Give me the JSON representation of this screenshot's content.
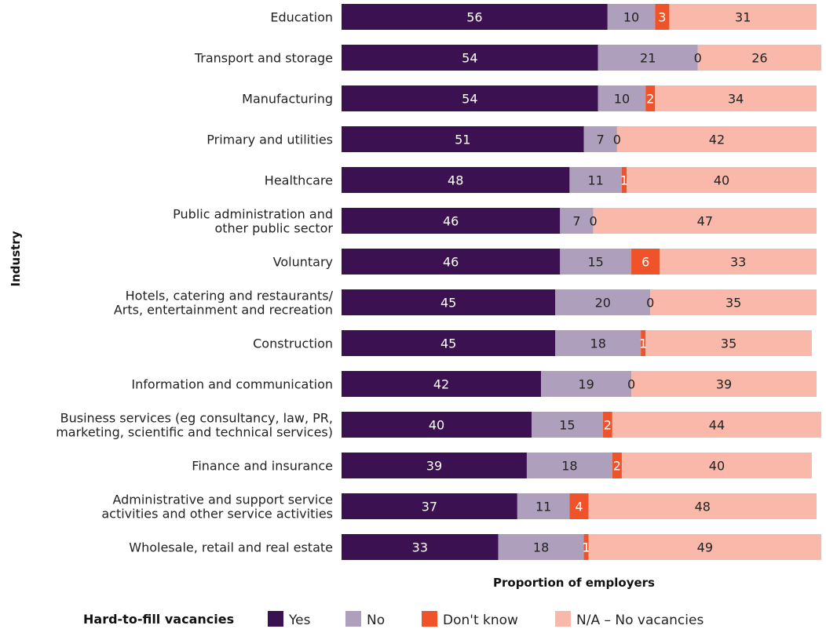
{
  "chart_data": {
    "type": "bar",
    "orientation": "horizontal",
    "stacked": true,
    "xlabel": "Proportion of employers",
    "ylabel": "Industry",
    "xlim": [
      0,
      100
    ],
    "grid": false,
    "legend_position": "bottom",
    "legend_title": "Hard-to-fill vacancies",
    "categories": [
      [
        "Education"
      ],
      [
        "Transport and storage"
      ],
      [
        "Manufacturing"
      ],
      [
        "Primary and utilities"
      ],
      [
        "Healthcare"
      ],
      [
        "Public administration and",
        "other public sector"
      ],
      [
        "Voluntary"
      ],
      [
        "Hotels, catering and restaurants/",
        "Arts, entertainment and recreation"
      ],
      [
        "Construction"
      ],
      [
        "Information and communication"
      ],
      [
        "Business services (eg consultancy, law, PR,",
        "marketing, scientific and technical services)"
      ],
      [
        "Finance and insurance"
      ],
      [
        "Administrative and support service",
        "activities and other service activities"
      ],
      [
        "Wholesale, retail and real estate"
      ]
    ],
    "series": [
      {
        "name": "Yes",
        "color": "#3b1152",
        "label_color": "#ffffff",
        "values": [
          56,
          54,
          54,
          51,
          48,
          46,
          46,
          45,
          45,
          42,
          40,
          39,
          37,
          33
        ]
      },
      {
        "name": "No",
        "color": "#ae9fbd",
        "label_color": "#222222",
        "values": [
          10,
          21,
          10,
          7,
          11,
          7,
          15,
          20,
          18,
          19,
          15,
          18,
          11,
          18
        ]
      },
      {
        "name": "Don't know",
        "color": "#f0522a",
        "label_color": "#ffffff",
        "values": [
          3,
          0,
          2,
          0,
          1,
          0,
          6,
          0,
          1,
          0,
          2,
          2,
          4,
          1
        ]
      },
      {
        "name": "N/A – No vacancies",
        "color": "#f9b8a9",
        "label_color": "#222222",
        "values": [
          31,
          26,
          34,
          42,
          40,
          47,
          33,
          35,
          35,
          39,
          44,
          40,
          48,
          49
        ]
      }
    ]
  }
}
